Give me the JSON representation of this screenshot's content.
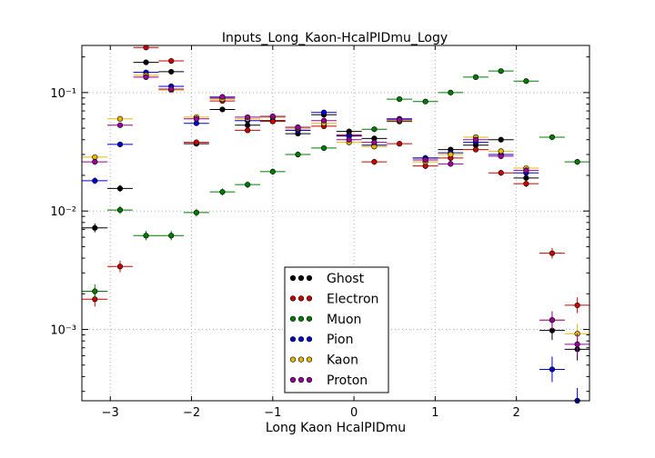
{
  "chart_data": {
    "type": "scatter",
    "title": "Inputs_Long_Kaon-HcalPIDmu_Logy",
    "xlabel": "Long Kaon HcalPIDmu",
    "ylabel": "",
    "xlim": [
      -3.35,
      2.9
    ],
    "ylim": [
      0.00025,
      0.25
    ],
    "yscale": "log",
    "grid": true,
    "legend_position": "lower center",
    "x_ticks": [
      -3,
      -2,
      -1,
      0,
      1,
      2
    ],
    "x_tick_labels": [
      "−3",
      "−2",
      "−1",
      "0",
      "1",
      "2"
    ],
    "y_ticks": [
      0.001,
      0.01,
      0.1
    ],
    "y_tick_labels": [
      "10⁻³",
      "10⁻²",
      "10⁻¹"
    ],
    "bin_half_width": 0.156,
    "x": [
      -3.19,
      -2.88,
      -2.56,
      -2.25,
      -1.94,
      -1.62,
      -1.31,
      -1.0,
      -0.69,
      -0.37,
      -0.06,
      0.25,
      0.56,
      0.88,
      1.19,
      1.5,
      1.81,
      2.12,
      2.44,
      2.75
    ],
    "series": [
      {
        "name": "Ghost",
        "color": "#000000",
        "values": [
          0.0072,
          0.0155,
          0.18,
          0.15,
          0.037,
          0.072,
          0.053,
          0.058,
          0.045,
          0.065,
          0.047,
          0.041,
          0.057,
          0.028,
          0.033,
          0.036,
          0.04,
          0.019,
          0.00098,
          0.00068
        ]
      },
      {
        "name": "Electron",
        "color": "#cc0000",
        "values": [
          0.0018,
          0.0034,
          0.24,
          0.185,
          0.038,
          0.085,
          0.048,
          0.057,
          0.048,
          0.052,
          0.044,
          0.026,
          0.037,
          0.024,
          0.028,
          0.033,
          0.021,
          0.017,
          0.0044,
          0.0016
        ]
      },
      {
        "name": "Muon",
        "color": "#007a00",
        "values": [
          0.0021,
          0.0102,
          0.0062,
          0.0062,
          0.0097,
          0.0145,
          0.0167,
          0.0215,
          0.03,
          0.034,
          0.043,
          0.049,
          0.088,
          0.084,
          0.1,
          0.135,
          0.152,
          0.125,
          0.042,
          0.026
        ]
      },
      {
        "name": "Pion",
        "color": "#0000cc",
        "values": [
          0.018,
          0.0365,
          0.148,
          0.113,
          0.055,
          0.09,
          0.058,
          0.062,
          0.048,
          0.068,
          0.043,
          0.036,
          0.06,
          0.028,
          0.031,
          0.038,
          0.03,
          0.021,
          0.00046,
          0.00025
        ]
      },
      {
        "name": "Kaon",
        "color": "#e6b800",
        "values": [
          0.0285,
          0.06,
          0.14,
          0.105,
          0.062,
          0.088,
          0.06,
          0.062,
          0.05,
          0.055,
          0.038,
          0.035,
          0.058,
          0.026,
          0.03,
          0.042,
          0.032,
          0.023,
          0.0012,
          0.00092
        ]
      },
      {
        "name": "Proton",
        "color": "#990099",
        "values": [
          0.026,
          0.053,
          0.135,
          0.107,
          0.06,
          0.092,
          0.062,
          0.063,
          0.051,
          0.058,
          0.04,
          0.038,
          0.059,
          0.027,
          0.025,
          0.04,
          0.029,
          0.022,
          0.0012,
          0.00075
        ]
      }
    ]
  }
}
